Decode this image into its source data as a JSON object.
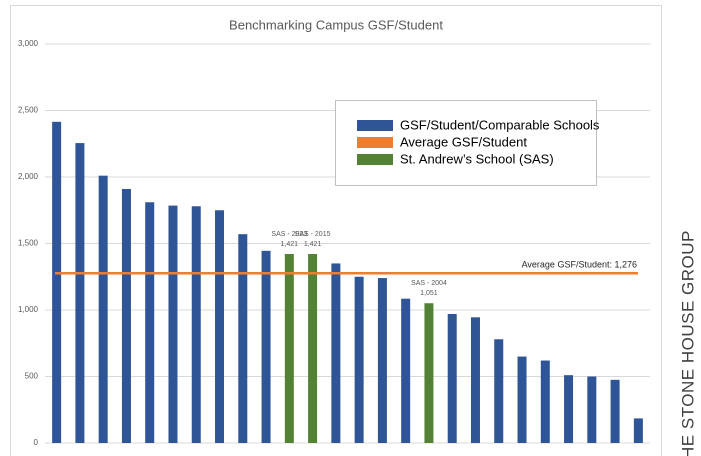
{
  "chart_data": {
    "type": "bar",
    "title": "Benchmarking Campus GSF/Student",
    "categories": [
      null,
      null,
      null,
      null,
      null,
      null,
      null,
      null,
      null,
      null,
      null,
      null,
      null,
      null,
      null,
      null,
      null,
      null,
      null,
      null,
      null,
      null,
      null,
      null,
      null,
      null
    ],
    "values": [
      2415,
      2255,
      2010,
      1910,
      1810,
      1785,
      1780,
      1750,
      1570,
      1445,
      1421,
      1421,
      1350,
      1250,
      1240,
      1085,
      1051,
      970,
      945,
      780,
      650,
      620,
      510,
      500,
      475,
      185
    ],
    "value_labels": [
      null,
      null,
      null,
      null,
      null,
      null,
      null,
      null,
      null,
      null,
      "1,421",
      "1,421",
      null,
      null,
      null,
      null,
      "1,051",
      null,
      null,
      null,
      null,
      null,
      null,
      null,
      null,
      null
    ],
    "bar_notes": [
      null,
      null,
      null,
      null,
      null,
      null,
      null,
      null,
      null,
      null,
      "SAS - 2023",
      "SAS - 2015",
      null,
      null,
      null,
      null,
      "SAS - 2004",
      null,
      null,
      null,
      null,
      null,
      null,
      null,
      null,
      null
    ],
    "colors": [
      "#2f5597",
      "#2f5597",
      "#2f5597",
      "#2f5597",
      "#2f5597",
      "#2f5597",
      "#2f5597",
      "#2f5597",
      "#2f5597",
      "#2f5597",
      "#548235",
      "#548235",
      "#2f5597",
      "#2f5597",
      "#2f5597",
      "#2f5597",
      "#548235",
      "#2f5597",
      "#2f5597",
      "#2f5597",
      "#2f5597",
      "#2f5597",
      "#2f5597",
      "#2f5597",
      "#2f5597",
      "#2f5597"
    ],
    "reference_line": {
      "value": 1276,
      "label": "Average GSF/Student: 1,276",
      "color": "#ed7d31"
    },
    "legend": [
      {
        "name": "GSF/Student/Comparable Schools",
        "color": "#2f5597"
      },
      {
        "name": "Average GSF/Student",
        "color": "#ed7d31"
      },
      {
        "name": "St. Andrew’s School (SAS)",
        "color": "#548235"
      }
    ],
    "ylim": [
      0,
      3000
    ],
    "yticks": [
      0,
      500,
      {
        "value": 1000,
        "label": "1,000"
      },
      {
        "value": 1500,
        "label": "1,500"
      },
      {
        "value": 2000,
        "label": "2,000"
      },
      {
        "value": 2500,
        "label": "2,500"
      },
      {
        "value": 3000,
        "label": "3,000"
      }
    ],
    "grid": true,
    "watermark": "THE STONE HOUSE GROUP"
  }
}
